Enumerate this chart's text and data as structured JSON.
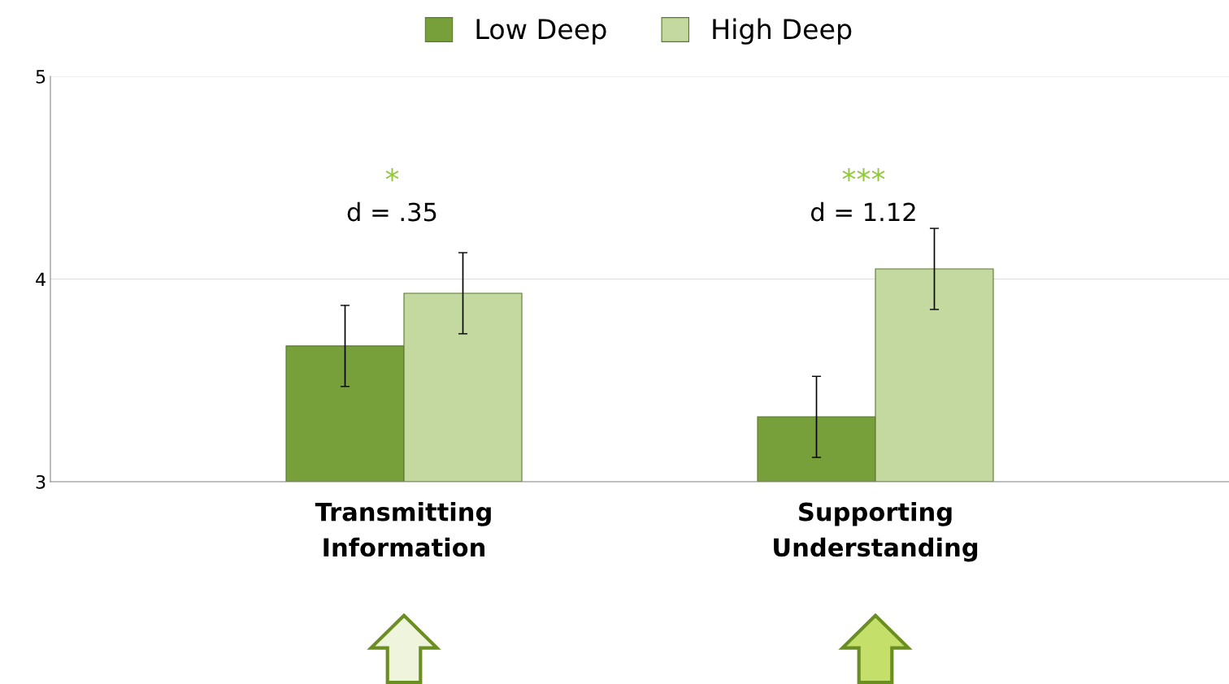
{
  "chart_data": {
    "type": "bar",
    "categories": [
      "Transmitting\nInformation",
      "Supporting\nUnderstanding"
    ],
    "series": [
      {
        "name": "Low Deep",
        "color": "#77a03a",
        "values": [
          3.67,
          3.32
        ],
        "errors": [
          0.2,
          0.2
        ]
      },
      {
        "name": "High Deep",
        "color": "#c4d9a0",
        "values": [
          3.93,
          4.05
        ],
        "errors": [
          0.2,
          0.2
        ]
      }
    ],
    "ylim": [
      3,
      5
    ],
    "yticks": [
      3,
      4,
      5
    ],
    "grid": "y",
    "legend": "top",
    "annotations": [
      "d = .35",
      "*",
      "d = 1.12",
      "***"
    ]
  }
}
